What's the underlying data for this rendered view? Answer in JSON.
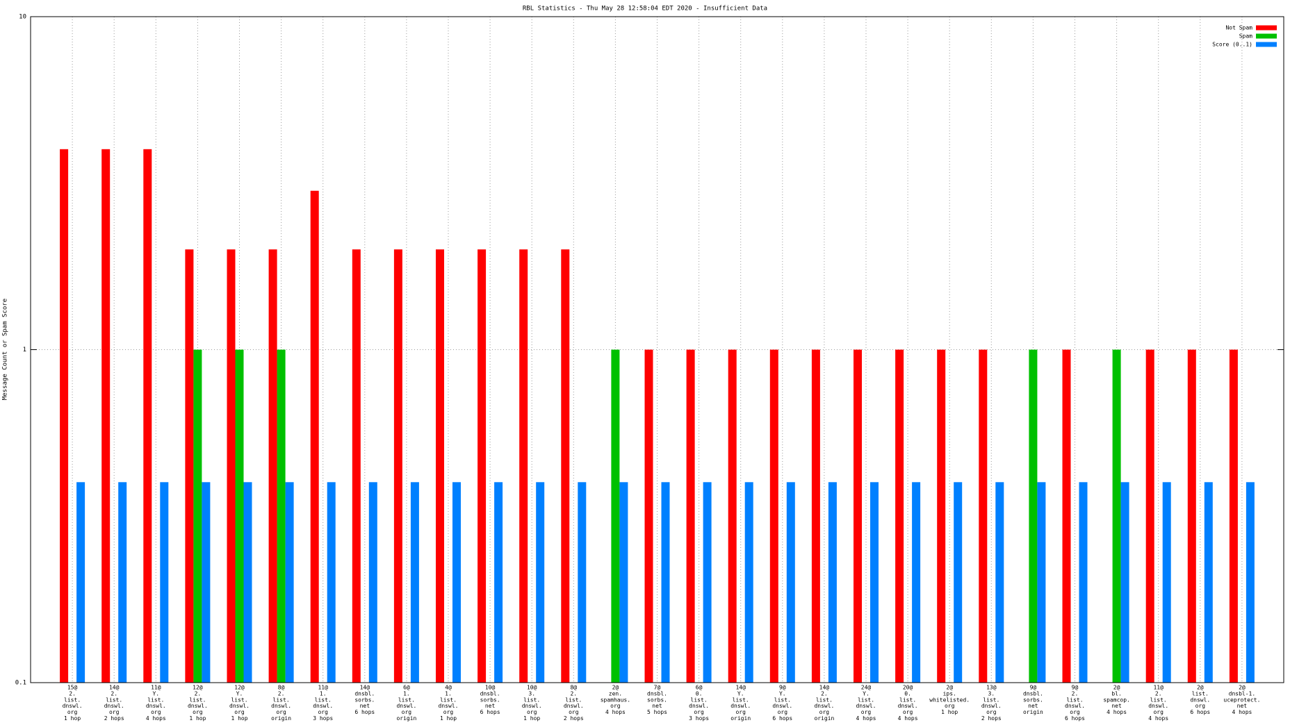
{
  "chart_data": {
    "type": "bar",
    "title": "RBL Statistics - Thu May 28 12:58:04 EDT 2020 - Insufficient Data",
    "y_label": "Message Count or Spam Score",
    "log_scale": true,
    "grid": true,
    "legend": "top-right",
    "ylim": [
      0.1,
      10
    ],
    "yticks": [
      0.1,
      1,
      10
    ],
    "categories": [
      [
        "15@",
        "2.",
        "list.",
        "dnswl.",
        "org",
        "1 hop"
      ],
      [
        "14@",
        "2.",
        "list.",
        "dnswl.",
        "org",
        "2 hops"
      ],
      [
        "11@",
        "Y.",
        "list.",
        "dnswl.",
        "org",
        "4 hops"
      ],
      [
        "12@",
        "2.",
        "list.",
        "dnswl.",
        "org",
        "1 hop"
      ],
      [
        "12@",
        "Y.",
        "list.",
        "dnswl.",
        "org",
        "1 hop"
      ],
      [
        "8@",
        "2.",
        "list.",
        "dnswl.",
        "org",
        "origin"
      ],
      [
        "11@",
        "1.",
        "list.",
        "dnswl.",
        "org",
        "3 hops"
      ],
      [
        "14@",
        "dnsbl.",
        "sorbs.",
        "net",
        "6 hops"
      ],
      [
        "6@",
        "1.",
        "list.",
        "dnswl.",
        "org",
        "origin"
      ],
      [
        "4@",
        "1.",
        "list.",
        "dnswl.",
        "org",
        "1 hop"
      ],
      [
        "10@",
        "dnsbl.",
        "sorbs.",
        "net",
        "6 hops"
      ],
      [
        "10@",
        "3.",
        "list.",
        "dnswl.",
        "org",
        "1 hop"
      ],
      [
        "8@",
        "2.",
        "list.",
        "dnswl.",
        "org",
        "2 hops"
      ],
      [
        "2@",
        "zen.",
        "spamhaus.",
        "org",
        "4 hops"
      ],
      [
        "7@",
        "dnsbl.",
        "sorbs.",
        "net",
        "5 hops"
      ],
      [
        "6@",
        "0.",
        "list.",
        "dnswl.",
        "org",
        "3 hops"
      ],
      [
        "14@",
        "Y.",
        "list.",
        "dnswl.",
        "org",
        "origin"
      ],
      [
        "9@",
        "Y.",
        "list.",
        "dnswl.",
        "org",
        "6 hops"
      ],
      [
        "14@",
        "2.",
        "list.",
        "dnswl.",
        "org",
        "origin"
      ],
      [
        "24@",
        "Y.",
        "list.",
        "dnswl.",
        "org",
        "4 hops"
      ],
      [
        "20@",
        "0.",
        "list.",
        "dnswl.",
        "org",
        "4 hops"
      ],
      [
        "2@",
        "ips.",
        "whitelisted.",
        "org",
        "1 hop"
      ],
      [
        "13@",
        "3.",
        "list.",
        "dnswl.",
        "org",
        "2 hops"
      ],
      [
        "9@",
        "dnsbl.",
        "sorbs.",
        "net",
        "origin"
      ],
      [
        "9@",
        "2.",
        "list.",
        "dnswl.",
        "org",
        "6 hops"
      ],
      [
        "2@",
        "bl.",
        "spamcop.",
        "net",
        "4 hops"
      ],
      [
        "11@",
        "2.",
        "list.",
        "dnswl.",
        "org",
        "4 hops"
      ],
      [
        "2@",
        "list.",
        "dnswl.",
        "org",
        "6 hops"
      ],
      [
        "2@",
        "dnsbl-1.",
        "uceprotect.",
        "net",
        "4 hops"
      ]
    ],
    "series": [
      {
        "name": "Not Spam",
        "color": "#ff0000",
        "values": [
          4,
          4,
          4,
          2,
          2,
          2,
          3,
          2,
          2,
          2,
          2,
          2,
          2,
          null,
          1,
          1,
          1,
          1,
          1,
          1,
          1,
          1,
          1,
          null,
          1,
          null,
          1,
          1,
          1
        ]
      },
      {
        "name": "Spam",
        "color": "#00c000",
        "values": [
          null,
          null,
          null,
          1,
          1,
          1,
          null,
          null,
          null,
          null,
          null,
          null,
          null,
          1,
          null,
          null,
          null,
          null,
          null,
          null,
          null,
          null,
          null,
          1,
          null,
          1,
          null,
          null,
          null
        ]
      },
      {
        "name": "Score (0..1)",
        "color": "#0080ff",
        "values": [
          0.4,
          0.4,
          0.4,
          0.4,
          0.4,
          0.4,
          0.4,
          0.4,
          0.4,
          0.4,
          0.4,
          0.4,
          0.4,
          0.4,
          0.4,
          0.4,
          0.4,
          0.4,
          0.4,
          0.4,
          0.4,
          0.4,
          0.4,
          0.4,
          0.4,
          0.4,
          0.4,
          0.4,
          0.4
        ]
      }
    ]
  }
}
